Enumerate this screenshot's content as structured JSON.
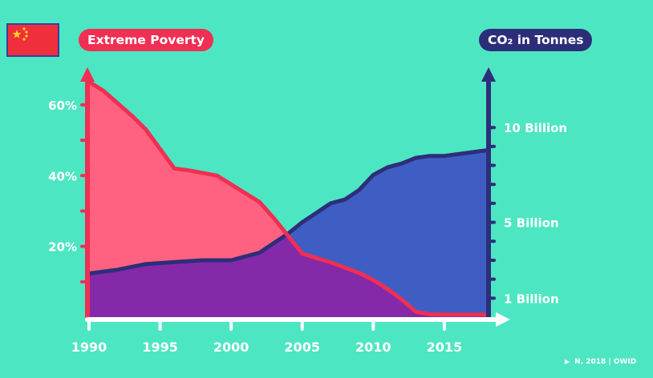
{
  "flag": {
    "icon": "china-flag-icon"
  },
  "legend": {
    "left_label": "Extreme Poverty",
    "right_label": "CO₂ in Tonnes",
    "left_color": "#ef2f53",
    "right_color": "#2d2e7a"
  },
  "source": {
    "label": "N. 2018 | OWID"
  },
  "chart_data": {
    "type": "area",
    "x_ticks": [
      "1990",
      "1995",
      "2000",
      "2005",
      "2010",
      "2015"
    ],
    "xlim": [
      1990,
      2018
    ],
    "left_axis": {
      "ticks": [
        {
          "value": 20,
          "label": "20%"
        },
        {
          "value": 40,
          "label": "40%"
        },
        {
          "value": 60,
          "label": "60%"
        }
      ],
      "ylim": [
        0,
        67
      ]
    },
    "right_axis": {
      "ticks": [
        {
          "value": 1,
          "label": "1 Billion"
        },
        {
          "value": 5,
          "label": "5 Billion"
        },
        {
          "value": 10,
          "label": "10 Billion"
        }
      ],
      "ylim": [
        0,
        12.5
      ]
    },
    "series": [
      {
        "name": "Extreme Poverty",
        "axis": "left",
        "color": "#ef2f53",
        "fill": "#ff6280",
        "x": [
          1990,
          1991,
          1993,
          1994,
          1996,
          1997,
          1999,
          2000,
          2001,
          2002,
          2003,
          2004,
          2005,
          2006,
          2007,
          2008,
          2009,
          2010,
          2011,
          2012,
          2013,
          2014,
          2015,
          2016,
          2017,
          2018
        ],
        "values": [
          66.5,
          64,
          57,
          53,
          42,
          41.5,
          40,
          37.5,
          35,
          32.5,
          28,
          23,
          18,
          16.7,
          15.5,
          14,
          12.5,
          10.5,
          8,
          5,
          1.5,
          0.8,
          0.7,
          0.7,
          0.7,
          0.7
        ]
      },
      {
        "name": "CO₂ in Tonnes",
        "axis": "right",
        "color": "#2d2e7a",
        "fill": "#3f5ec3",
        "x": [
          1990,
          1992,
          1994,
          1996,
          1998,
          2000,
          2002,
          2003,
          2004,
          2005,
          2006,
          2007,
          2008,
          2009,
          2010,
          2011,
          2012,
          2013,
          2014,
          2015,
          2016,
          2017,
          2018
        ],
        "values": [
          2.3,
          2.5,
          2.8,
          2.9,
          3.0,
          3.0,
          3.4,
          3.9,
          4.4,
          5.0,
          5.5,
          6.0,
          6.2,
          6.7,
          7.5,
          7.9,
          8.1,
          8.4,
          8.5,
          8.5,
          8.6,
          8.7,
          8.8
        ]
      }
    ]
  }
}
